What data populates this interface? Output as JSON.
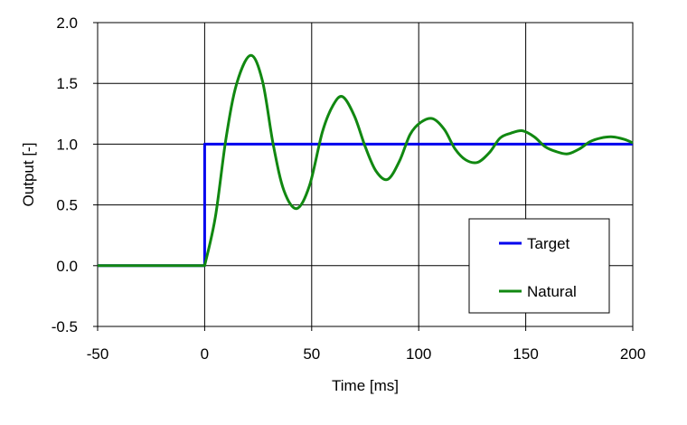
{
  "chart_data": {
    "type": "line",
    "title": "",
    "xlabel": "Time [ms]",
    "ylabel": "Output [-]",
    "xlim": [
      -50,
      200
    ],
    "ylim": [
      -0.5,
      2.0
    ],
    "xticks": [
      -50,
      0,
      50,
      100,
      150,
      200
    ],
    "xtick_labels": [
      "-50",
      "0",
      "50",
      "100",
      "150",
      "200"
    ],
    "yticks": [
      -0.5,
      0.0,
      0.5,
      1.0,
      1.5,
      2.0
    ],
    "ytick_labels": [
      "-0.5",
      "0.0",
      "0.5",
      "1.0",
      "1.5",
      "2.0"
    ],
    "grid": true,
    "legend_position": "bottom-right",
    "series": [
      {
        "name": "Target",
        "color": "#0000ee",
        "x": [
          -50,
          0,
          0,
          200
        ],
        "y": [
          0,
          0,
          1,
          1
        ]
      },
      {
        "name": "Natural",
        "color": "#118811",
        "x": [
          -50,
          0,
          5,
          10,
          15,
          21.5,
          27,
          32,
          37,
          43,
          49,
          55,
          60,
          64.5,
          70,
          75,
          80,
          85.5,
          91,
          96,
          101,
          106.5,
          112,
          117,
          122,
          127.5,
          133,
          138,
          143,
          148.5,
          154,
          159,
          164,
          169.5,
          175,
          180,
          185,
          190.5,
          196,
          200
        ],
        "y": [
          0,
          0,
          0.4,
          1.05,
          1.5,
          1.73,
          1.52,
          1.0,
          0.62,
          0.47,
          0.66,
          1.1,
          1.32,
          1.39,
          1.23,
          0.98,
          0.78,
          0.71,
          0.86,
          1.08,
          1.18,
          1.21,
          1.12,
          0.96,
          0.87,
          0.85,
          0.93,
          1.05,
          1.09,
          1.11,
          1.06,
          0.98,
          0.94,
          0.92,
          0.96,
          1.02,
          1.05,
          1.06,
          1.04,
          1.01
        ]
      }
    ]
  }
}
